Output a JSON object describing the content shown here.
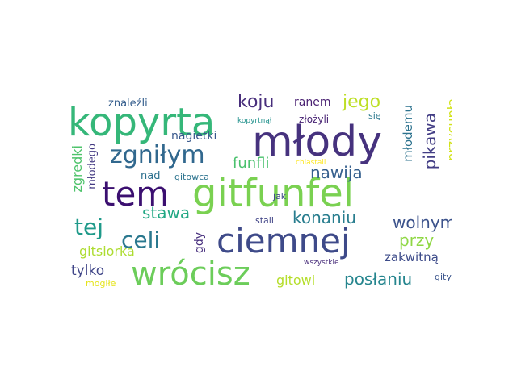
{
  "words": [
    {
      "text": "gitfunfel",
      "color": "#7ad151"
    },
    {
      "text": "młody",
      "color": "#46327e"
    },
    {
      "text": "kopyrta",
      "color": "#35b779"
    },
    {
      "text": "ciemnej",
      "color": "#3e4a89"
    },
    {
      "text": "wrócisz",
      "color": "#6ccd5a"
    },
    {
      "text": "tem",
      "color": "#3b0f70"
    },
    {
      "text": "zgniłym",
      "color": "#31688e"
    },
    {
      "text": "celi",
      "color": "#2a788e"
    },
    {
      "text": "tej",
      "color": "#1f9a8a"
    },
    {
      "text": "koju",
      "color": "#472d7b"
    },
    {
      "text": "pikawa",
      "color": "#433e85"
    },
    {
      "text": "jego",
      "color": "#bddf26"
    },
    {
      "text": "stawa",
      "color": "#22a884"
    },
    {
      "text": "nawija",
      "color": "#355f8d"
    },
    {
      "text": "konaniu",
      "color": "#287d8e"
    },
    {
      "text": "wolnym",
      "color": "#3b528b"
    },
    {
      "text": "funfli",
      "color": "#4ac16d"
    },
    {
      "text": "przy",
      "color": "#8fd744"
    },
    {
      "text": "posłaniu",
      "color": "#25858e"
    },
    {
      "text": "młodemu",
      "color": "#2c728e"
    },
    {
      "text": "przycupła",
      "color": "#d2e21b"
    },
    {
      "text": "gitsiorka",
      "color": "#addc30"
    },
    {
      "text": "tylko",
      "color": "#404688"
    },
    {
      "text": "gitowi",
      "color": "#b5de2b"
    },
    {
      "text": "zakwitną",
      "color": "#3e4c8a"
    },
    {
      "text": "nagietki",
      "color": "#38588c"
    },
    {
      "text": "zgredki",
      "color": "#4ec36b"
    },
    {
      "text": "młodego",
      "color": "#443a83"
    },
    {
      "text": "ranem",
      "color": "#481f71"
    },
    {
      "text": "znaleźli",
      "color": "#355e8d"
    },
    {
      "text": "gdy",
      "color": "#472f7d"
    },
    {
      "text": "nad",
      "color": "#2d708e"
    },
    {
      "text": "gitowca",
      "color": "#2c738e"
    },
    {
      "text": "złożyli",
      "color": "#482374"
    },
    {
      "text": "się",
      "color": "#2a788e"
    },
    {
      "text": "kopyrtnął",
      "color": "#21918c"
    },
    {
      "text": "chlastali",
      "color": "#fde725"
    },
    {
      "text": "jak",
      "color": "#3e4989"
    },
    {
      "text": "stali",
      "color": "#414487"
    },
    {
      "text": "wszystkie",
      "color": "#472c7a"
    },
    {
      "text": "mogiłe",
      "color": "#e5e419"
    },
    {
      "text": "gity",
      "color": "#3a548c"
    }
  ]
}
